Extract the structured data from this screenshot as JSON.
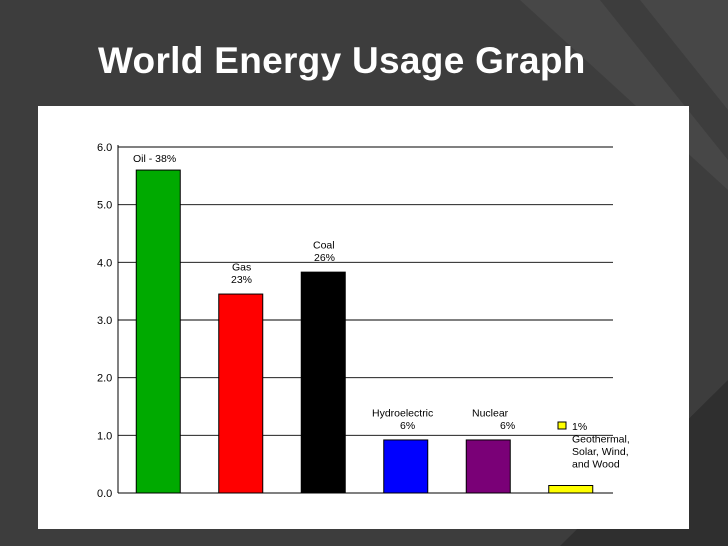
{
  "slide": {
    "title": "World Energy Usage Graph"
  },
  "colors": {
    "background": "#3d3d3d",
    "panel": "#ffffff",
    "title_text": "#ffffff"
  },
  "chart_data": {
    "type": "bar",
    "title": "",
    "xlabel": "",
    "ylabel": "",
    "ylim": [
      0,
      6
    ],
    "yticks": [
      "0.0",
      "1.0",
      "2.0",
      "3.0",
      "4.0",
      "5.0",
      "6.0"
    ],
    "grid": true,
    "categories": [
      "Oil",
      "Gas",
      "Coal",
      "Hydroelectric",
      "Nuclear",
      "Geothermal, Solar, Wind, and Wood"
    ],
    "values": [
      5.6,
      3.45,
      3.83,
      0.92,
      0.92,
      0.13
    ],
    "colors": [
      "#00aa00",
      "#ff0000",
      "#000000",
      "#0000ff",
      "#7a0077",
      "#ffff00"
    ],
    "annotations": [
      {
        "lines": [
          "Oil - 38%"
        ]
      },
      {
        "lines": [
          "Gas",
          "23%"
        ]
      },
      {
        "lines": [
          "Coal",
          "26%"
        ]
      },
      {
        "lines": [
          "Hydroelectric",
          "6%"
        ]
      },
      {
        "lines": [
          "Nuclear",
          "6%"
        ]
      },
      {
        "lines": [
          "1%",
          "Geothermal,",
          "Solar, Wind,",
          "and Wood"
        ]
      }
    ]
  }
}
